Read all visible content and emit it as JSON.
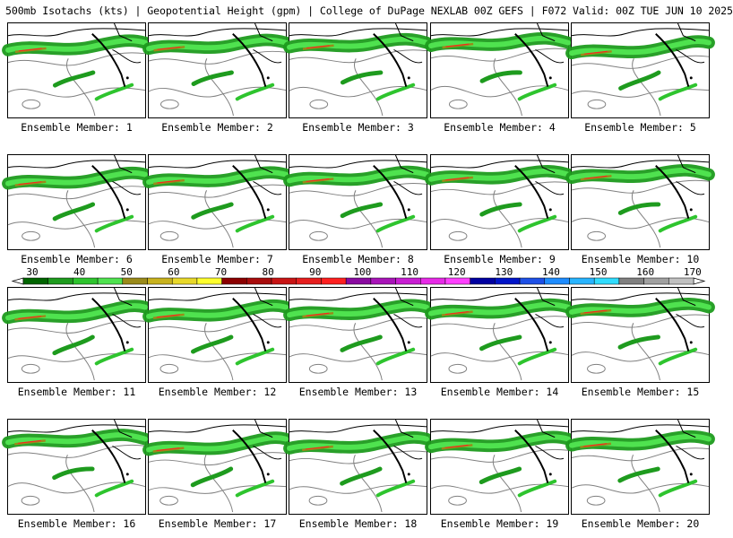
{
  "header": {
    "title": "500mb Isotachs (kts) | Geopotential Height (gpm) | College of DuPage NEXLAB   00Z GEFS | F072 Valid: 00Z TUE JUN 10 2025"
  },
  "panels": [
    {
      "label": "Ensemble Member: 1"
    },
    {
      "label": "Ensemble Member: 2"
    },
    {
      "label": "Ensemble Member: 3"
    },
    {
      "label": "Ensemble Member: 4"
    },
    {
      "label": "Ensemble Member: 5"
    },
    {
      "label": "Ensemble Member: 6"
    },
    {
      "label": "Ensemble Member: 7"
    },
    {
      "label": "Ensemble Member: 8"
    },
    {
      "label": "Ensemble Member: 9"
    },
    {
      "label": "Ensemble Member: 10"
    },
    {
      "label": "Ensemble Member: 11"
    },
    {
      "label": "Ensemble Member: 12"
    },
    {
      "label": "Ensemble Member: 13"
    },
    {
      "label": "Ensemble Member: 14"
    },
    {
      "label": "Ensemble Member: 15"
    },
    {
      "label": "Ensemble Member: 16"
    },
    {
      "label": "Ensemble Member: 17"
    },
    {
      "label": "Ensemble Member: 18"
    },
    {
      "label": "Ensemble Member: 19"
    },
    {
      "label": "Ensemble Member: 20"
    }
  ],
  "colorbar": {
    "ticks": [
      "30",
      "40",
      "50",
      "60",
      "70",
      "80",
      "90",
      "100",
      "110",
      "120",
      "130",
      "140",
      "150",
      "160",
      "170"
    ],
    "colors": [
      "#006400",
      "#1e9b1e",
      "#2ec42e",
      "#4fe24f",
      "#9a8a1a",
      "#c8b21e",
      "#e8d82a",
      "#ffff2e",
      "#8b0000",
      "#a80c0c",
      "#c81414",
      "#e61e1e",
      "#ff2020",
      "#8a0aa0",
      "#a814b8",
      "#c81ed2",
      "#e62ae6",
      "#ff40ff",
      "#0000a0",
      "#0014c8",
      "#1e50e6",
      "#1e8cff",
      "#28b4ff",
      "#30dcff",
      "#808080",
      "#a0a0a0",
      "#c0c0c0"
    ]
  }
}
